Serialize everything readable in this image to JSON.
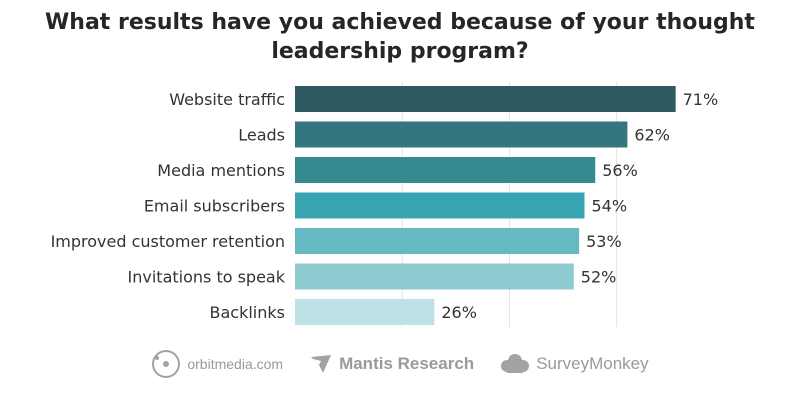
{
  "title_lines": [
    "What results have you achieved because of your thought",
    "leadership program?"
  ],
  "chart_data": {
    "type": "bar",
    "orientation": "horizontal",
    "title": "What results have you achieved because of your thought leadership program?",
    "categories": [
      "Website traffic",
      "Leads",
      "Media mentions",
      "Email subscribers",
      "Improved customer retention",
      "Invitations to speak",
      "Backlinks"
    ],
    "values": [
      71,
      62,
      56,
      54,
      53,
      52,
      26
    ],
    "value_labels": [
      "71%",
      "62%",
      "56%",
      "54%",
      "53%",
      "52%",
      "26%"
    ],
    "colors": [
      "#2f5960",
      "#33767e",
      "#36898f",
      "#3aa5b2",
      "#64b9c2",
      "#8ecbd1",
      "#bde1e5"
    ],
    "xlim": [
      0,
      72
    ],
    "grid": true,
    "legend": "none"
  },
  "footer": {
    "logos": [
      {
        "name": "orbitmedia-logo",
        "text": "orbitmedia.com",
        "icon": "orbit-circle-icon"
      },
      {
        "name": "mantis-research-logo",
        "text": "Mantis Research",
        "icon": "mantis-icon"
      },
      {
        "name": "surveymonkey-logo",
        "text": "SurveyMonkey",
        "icon": "monkey-icon"
      }
    ]
  }
}
